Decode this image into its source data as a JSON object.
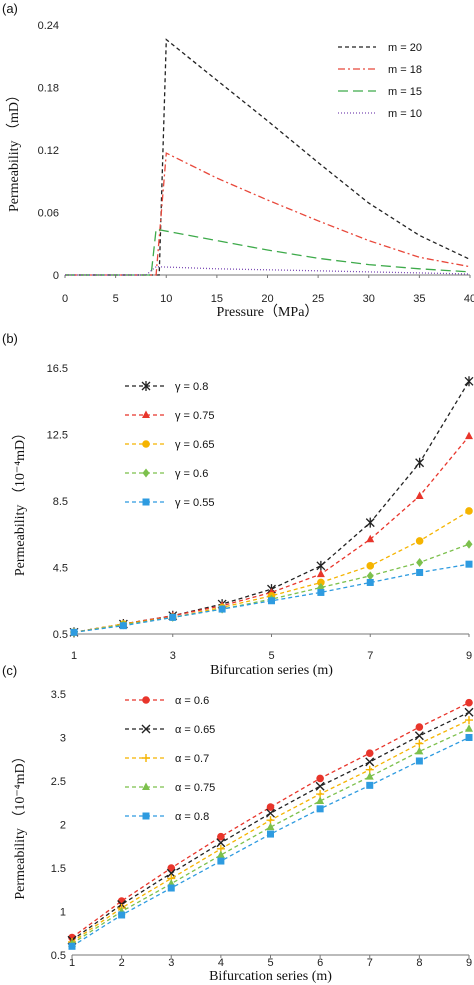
{
  "chart_data": [
    {
      "type": "line",
      "panel_label": "(a)",
      "xlabel": "Pressure（MPa）",
      "ylabel": "Permeability （mD）",
      "xlim": [
        0,
        40
      ],
      "ylim": [
        0,
        0.24
      ],
      "xticks": [
        "0",
        "5",
        "10",
        "15",
        "20",
        "25",
        "30",
        "35",
        "40"
      ],
      "yticks": [
        "0",
        "0.06",
        "0.12",
        "0.18",
        "0.24"
      ],
      "legend_position": "top-right",
      "grid": false,
      "series": [
        {
          "name": "m = 20",
          "color": "#222222",
          "dash": "4,3",
          "x": [
            0,
            9.3,
            10,
            15,
            20,
            25,
            30,
            35,
            40
          ],
          "y": [
            0,
            0,
            0.226,
            0.187,
            0.148,
            0.108,
            0.069,
            0.038,
            0.015
          ]
        },
        {
          "name": "m = 18",
          "color": "#e8483b",
          "dash": "7,3,2,3",
          "x": [
            0,
            9.0,
            10,
            15,
            20,
            25,
            30,
            35,
            40
          ],
          "y": [
            0,
            0,
            0.117,
            0.093,
            0.072,
            0.052,
            0.033,
            0.017,
            0.008
          ]
        },
        {
          "name": "m = 15",
          "color": "#3daa4a",
          "dash": "10,5",
          "x": [
            0,
            8.5,
            9,
            15,
            20,
            25,
            30,
            35,
            40
          ],
          "y": [
            0,
            0,
            0.044,
            0.033,
            0.024,
            0.016,
            0.01,
            0.006,
            0.003
          ]
        },
        {
          "name": "m = 10",
          "color": "#7b4ab5",
          "dash": "1,2",
          "x": [
            0,
            8.0,
            9,
            15,
            20,
            25,
            30,
            35,
            40
          ],
          "y": [
            0,
            0,
            0.008,
            0.006,
            0.005,
            0.004,
            0.003,
            0.002,
            0.001
          ]
        }
      ]
    },
    {
      "type": "line",
      "panel_label": "(b)",
      "xlabel": "Bifurcation  series (m)",
      "ylabel": "Permeability （10⁻⁴mD）",
      "xlim": [
        1,
        9
      ],
      "ylim": [
        0.5,
        16.5
      ],
      "xticks": [
        "1",
        "3",
        "5",
        "7",
        "9"
      ],
      "yticks": [
        "0.5",
        "4.5",
        "8.5",
        "12.5",
        "16.5"
      ],
      "legend_position": "top-left",
      "grid": false,
      "x": [
        1,
        2,
        3,
        4,
        5,
        6,
        7,
        8,
        9
      ],
      "series": [
        {
          "name": "γ = 0.8",
          "color": "#222222",
          "marker": "asterisk",
          "values": [
            0.6,
            1.1,
            1.6,
            2.3,
            3.2,
            4.6,
            7.2,
            10.8,
            15.7
          ]
        },
        {
          "name": "γ = 0.75",
          "color": "#e8352b",
          "marker": "triangle",
          "values": [
            0.6,
            1.1,
            1.6,
            2.2,
            3.0,
            4.1,
            6.2,
            8.8,
            12.4
          ]
        },
        {
          "name": "γ = 0.65",
          "color": "#f5b400",
          "marker": "circle",
          "values": [
            0.6,
            1.1,
            1.5,
            2.1,
            2.8,
            3.6,
            4.6,
            6.1,
            7.9
          ]
        },
        {
          "name": "γ = 0.6",
          "color": "#7cc04c",
          "marker": "diamond",
          "values": [
            0.6,
            1.05,
            1.5,
            2.0,
            2.6,
            3.3,
            4.0,
            4.8,
            5.9
          ]
        },
        {
          "name": "γ = 0.55",
          "color": "#2e9be0",
          "marker": "square",
          "values": [
            0.6,
            1.0,
            1.5,
            2.0,
            2.5,
            3.0,
            3.6,
            4.2,
            4.7
          ]
        }
      ]
    },
    {
      "type": "line",
      "panel_label": "(c)",
      "xlabel": "Bifurcation  series (m)",
      "ylabel": "Permeability （10⁻⁴mD）",
      "xlim": [
        1,
        9
      ],
      "ylim": [
        0.5,
        3.5
      ],
      "xticks": [
        "1",
        "2",
        "3",
        "4",
        "5",
        "6",
        "7",
        "8",
        "9"
      ],
      "yticks": [
        "0.5",
        "1",
        "1.5",
        "2",
        "2.5",
        "3",
        "3.5"
      ],
      "legend_position": "top-left",
      "grid": false,
      "x": [
        1,
        2,
        3,
        4,
        5,
        6,
        7,
        8,
        9
      ],
      "series": [
        {
          "name": "α = 0.6",
          "color": "#e8352b",
          "marker": "circle",
          "values": [
            0.7,
            1.12,
            1.5,
            1.86,
            2.2,
            2.53,
            2.82,
            3.12,
            3.4
          ]
        },
        {
          "name": "α = 0.65",
          "color": "#222222",
          "marker": "x",
          "values": [
            0.67,
            1.08,
            1.44,
            1.79,
            2.13,
            2.44,
            2.72,
            3.02,
            3.29
          ]
        },
        {
          "name": "α = 0.7",
          "color": "#f5b400",
          "marker": "plus",
          "values": [
            0.65,
            1.04,
            1.38,
            1.72,
            2.05,
            2.35,
            2.63,
            2.93,
            3.2
          ]
        },
        {
          "name": "α = 0.75",
          "color": "#7cc04c",
          "marker": "triangle",
          "values": [
            0.63,
            1.0,
            1.32,
            1.65,
            1.97,
            2.27,
            2.55,
            2.84,
            3.1
          ]
        },
        {
          "name": "α = 0.8",
          "color": "#2e9be0",
          "marker": "square",
          "values": [
            0.6,
            0.96,
            1.27,
            1.58,
            1.89,
            2.18,
            2.45,
            2.73,
            3.0
          ]
        }
      ]
    }
  ]
}
